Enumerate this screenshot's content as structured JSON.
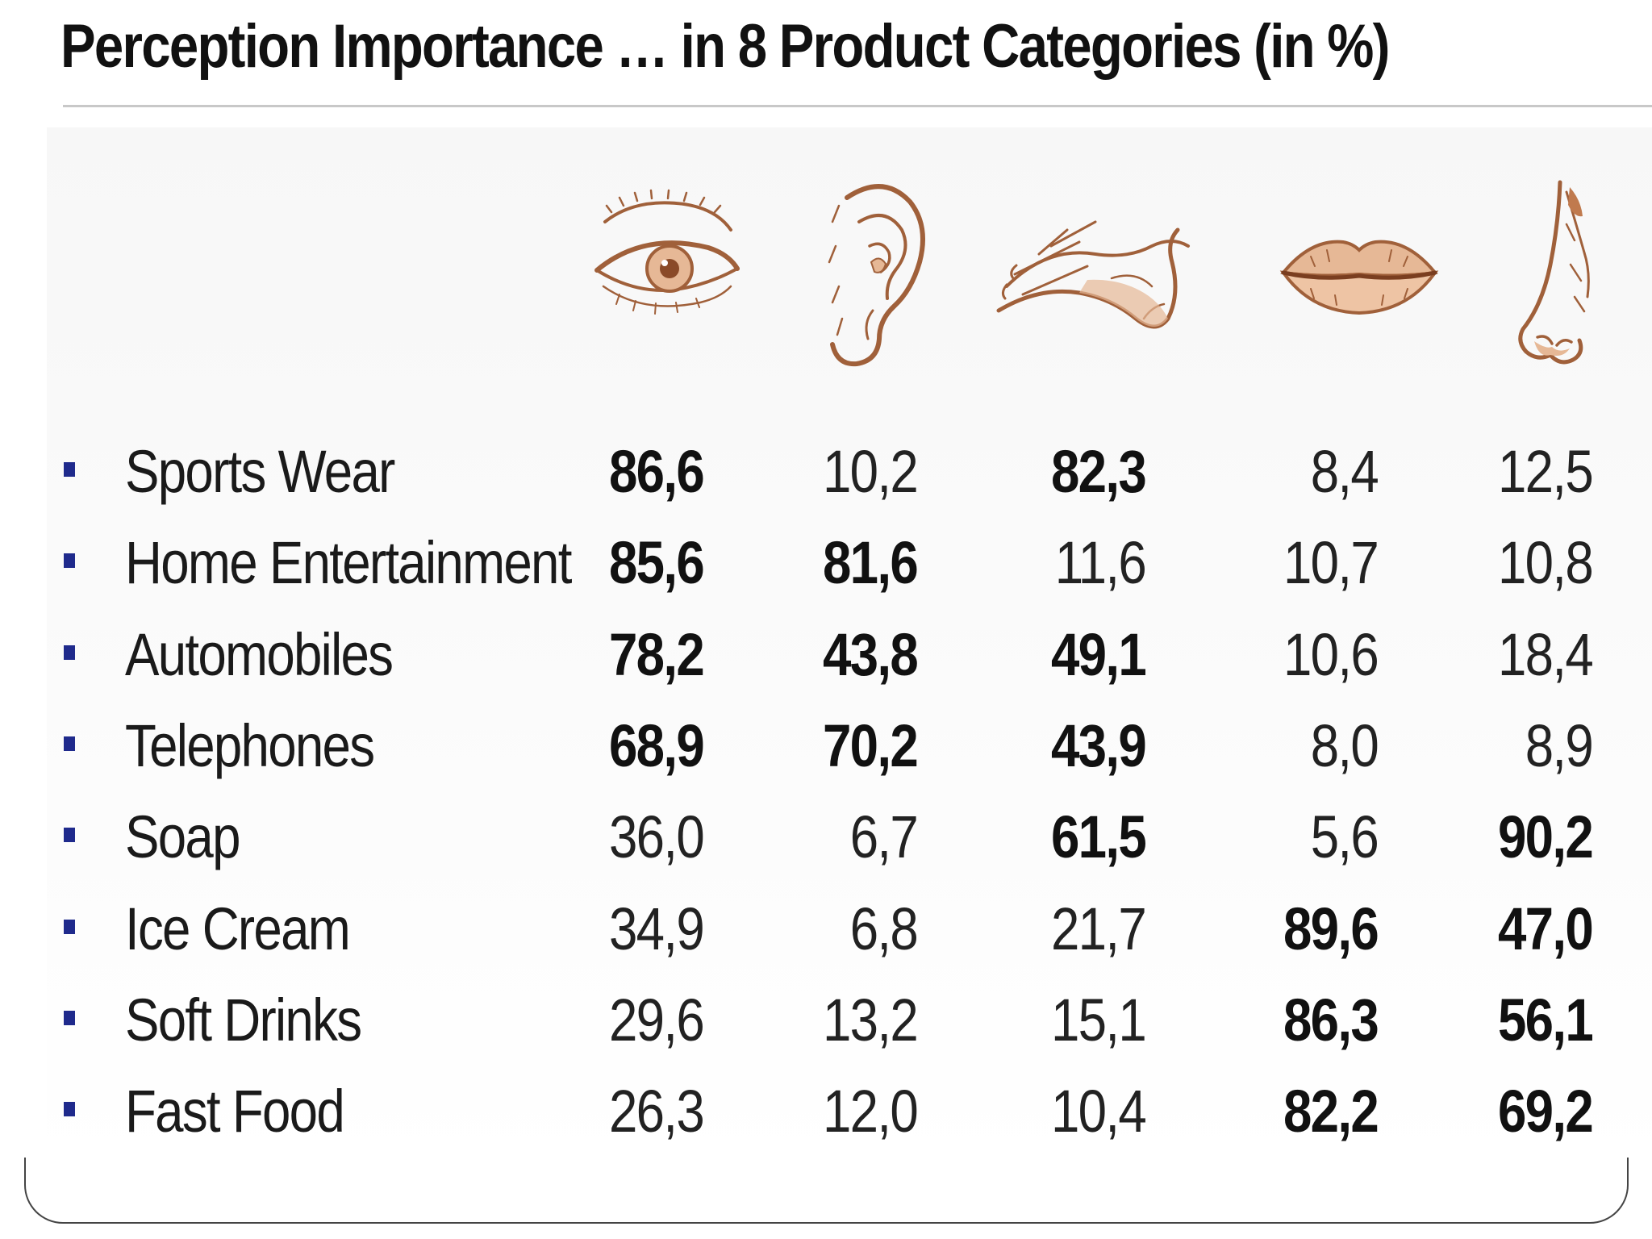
{
  "title": "Perception Importance … in 8 Product Categories (in %)",
  "senses": [
    {
      "icon": "eye-icon"
    },
    {
      "icon": "ear-icon"
    },
    {
      "icon": "hand-icon"
    },
    {
      "icon": "lips-icon"
    },
    {
      "icon": "nose-icon"
    }
  ],
  "rows": [
    {
      "category": "Sports Wear",
      "values": [
        {
          "text": "86,6",
          "bold": true
        },
        {
          "text": "10,2",
          "bold": false
        },
        {
          "text": "82,3",
          "bold": true
        },
        {
          "text": "8,4",
          "bold": false
        },
        {
          "text": "12,5",
          "bold": false
        }
      ]
    },
    {
      "category": "Home Entertainment",
      "values": [
        {
          "text": "85,6",
          "bold": true
        },
        {
          "text": "81,6",
          "bold": true
        },
        {
          "text": "11,6",
          "bold": false
        },
        {
          "text": "10,7",
          "bold": false
        },
        {
          "text": "10,8",
          "bold": false
        }
      ]
    },
    {
      "category": "Automobiles",
      "values": [
        {
          "text": "78,2",
          "bold": true
        },
        {
          "text": "43,8",
          "bold": true
        },
        {
          "text": "49,1",
          "bold": true
        },
        {
          "text": "10,6",
          "bold": false
        },
        {
          "text": "18,4",
          "bold": false
        }
      ]
    },
    {
      "category": "Telephones",
      "values": [
        {
          "text": "68,9",
          "bold": true
        },
        {
          "text": "70,2",
          "bold": true
        },
        {
          "text": "43,9",
          "bold": true
        },
        {
          "text": "8,0",
          "bold": false
        },
        {
          "text": "8,9",
          "bold": false
        }
      ]
    },
    {
      "category": "Soap",
      "values": [
        {
          "text": "36,0",
          "bold": false
        },
        {
          "text": "6,7",
          "bold": false
        },
        {
          "text": "61,5",
          "bold": true
        },
        {
          "text": "5,6",
          "bold": false
        },
        {
          "text": "90,2",
          "bold": true
        }
      ]
    },
    {
      "category": "Ice Cream",
      "values": [
        {
          "text": "34,9",
          "bold": false
        },
        {
          "text": "6,8",
          "bold": false
        },
        {
          "text": "21,7",
          "bold": false
        },
        {
          "text": "89,6",
          "bold": true
        },
        {
          "text": "47,0",
          "bold": true
        }
      ]
    },
    {
      "category": "Soft Drinks",
      "values": [
        {
          "text": "29,6",
          "bold": false
        },
        {
          "text": "13,2",
          "bold": false
        },
        {
          "text": "15,1",
          "bold": false
        },
        {
          "text": "86,3",
          "bold": true
        },
        {
          "text": "56,1",
          "bold": true
        }
      ]
    },
    {
      "category": "Fast Food",
      "values": [
        {
          "text": "26,3",
          "bold": false
        },
        {
          "text": "12,0",
          "bold": false
        },
        {
          "text": "10,4",
          "bold": false
        },
        {
          "text": "82,2",
          "bold": true
        },
        {
          "text": "69,2",
          "bold": true
        }
      ]
    }
  ],
  "colors": {
    "bullet": "#1f2a8c",
    "sketch": "#a0603a",
    "sketch_fill": "#e6b896"
  }
}
